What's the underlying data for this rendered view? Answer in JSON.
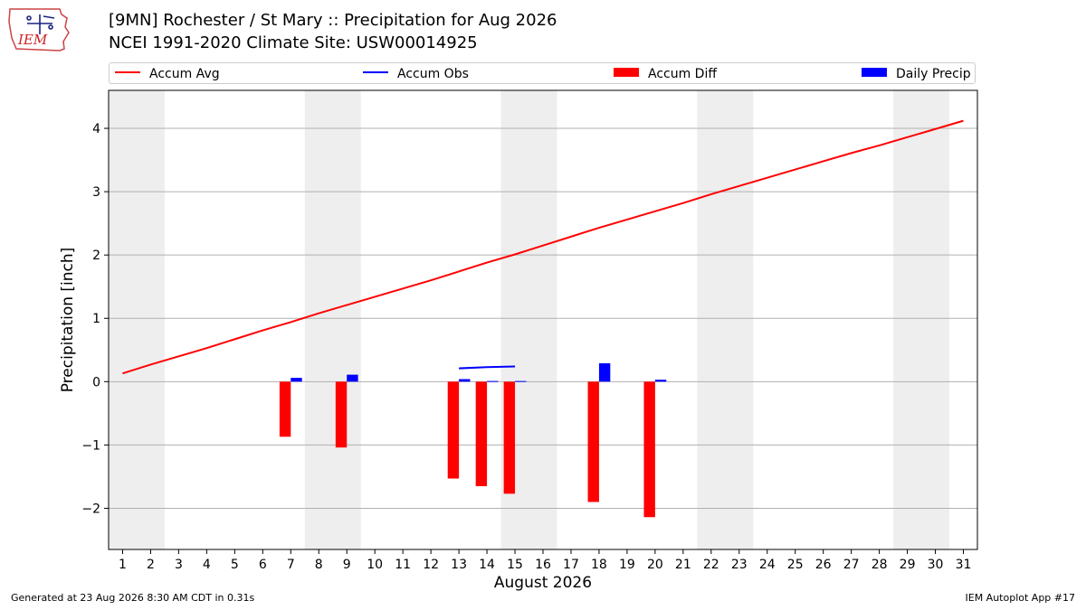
{
  "header": {
    "title_line1": "[9MN] Rochester / St Mary :: Precipitation for Aug 2026",
    "title_line2": "NCEI 1991-2020 Climate Site: USW00014925"
  },
  "logo": {
    "text": "IEM",
    "icon": "iem-weather-station-logo"
  },
  "legend": {
    "accum_avg": "Accum Avg",
    "accum_obs": "Accum Obs",
    "accum_diff": "Accum Diff",
    "daily_precip": "Daily Precip"
  },
  "footer": {
    "generated": "Generated at 23 Aug 2026 8:30 AM CDT in 0.31s",
    "app": "IEM Autoplot App #17"
  },
  "colors": {
    "accum_avg": "#ff0000",
    "accum_obs": "#0000ff",
    "accum_diff": "#ff0000",
    "daily_precip": "#0000ff",
    "weekend_band": "#eeeeee",
    "grid": "#b0b0b0"
  },
  "chart_data": {
    "type": "bar",
    "title": "[9MN] Rochester / St Mary :: Precipitation for Aug 2026",
    "subtitle": "NCEI 1991-2020 Climate Site: USW00014925",
    "xlabel": "August 2026",
    "ylabel": "Precipitation [inch]",
    "xlim": [
      0.5,
      31.5
    ],
    "ylim": [
      -2.65,
      4.6
    ],
    "y_ticks": [
      -2,
      -1,
      0,
      1,
      2,
      3,
      4
    ],
    "y_tick_labels": [
      "−2",
      "−1",
      "0",
      "1",
      "2",
      "3",
      "4"
    ],
    "x_ticks": [
      1,
      2,
      3,
      4,
      5,
      6,
      7,
      8,
      9,
      10,
      11,
      12,
      13,
      14,
      15,
      16,
      17,
      18,
      19,
      20,
      21,
      22,
      23,
      24,
      25,
      26,
      27,
      28,
      29,
      30,
      31
    ],
    "x_tick_labels": [
      "1",
      "2",
      "3",
      "4",
      "5",
      "6",
      "7",
      "8",
      "9",
      "10",
      "11",
      "12",
      "13",
      "14",
      "15",
      "16",
      "17",
      "18",
      "19",
      "20",
      "21",
      "22",
      "23",
      "24",
      "25",
      "26",
      "27",
      "28",
      "29",
      "30",
      "31"
    ],
    "grid": true,
    "legend_position": "top",
    "weekend_bands": [
      [
        1,
        2
      ],
      [
        8,
        9
      ],
      [
        15,
        16
      ],
      [
        22,
        23
      ],
      [
        29,
        30
      ]
    ],
    "series": [
      {
        "name": "Accum Avg",
        "type": "line",
        "x": [
          1,
          2,
          3,
          4,
          5,
          6,
          7,
          8,
          9,
          10,
          11,
          12,
          13,
          14,
          15,
          16,
          17,
          18,
          19,
          20,
          21,
          22,
          23,
          24,
          25,
          26,
          27,
          28,
          29,
          30,
          31
        ],
        "y": [
          0.13,
          0.27,
          0.4,
          0.53,
          0.67,
          0.81,
          0.94,
          1.08,
          1.21,
          1.34,
          1.47,
          1.6,
          1.74,
          1.88,
          2.01,
          2.15,
          2.29,
          2.43,
          2.56,
          2.69,
          2.82,
          2.96,
          3.09,
          3.22,
          3.35,
          3.48,
          3.61,
          3.73,
          3.86,
          3.99,
          4.12
        ]
      },
      {
        "name": "Accum Obs",
        "type": "line",
        "x": [
          13,
          14,
          15
        ],
        "y": [
          0.21,
          0.23,
          0.24
        ]
      },
      {
        "name": "Accum Diff",
        "type": "bar",
        "x": [
          7,
          9,
          13,
          14,
          15,
          18,
          20
        ],
        "y": [
          -0.87,
          -1.04,
          -1.53,
          -1.65,
          -1.77,
          -1.9,
          -2.14
        ]
      },
      {
        "name": "Daily Precip",
        "type": "bar",
        "x": [
          7,
          9,
          13,
          14,
          15,
          18,
          20
        ],
        "y": [
          0.06,
          0.11,
          0.04,
          0.01,
          0.01,
          0.29,
          0.03
        ]
      }
    ]
  }
}
